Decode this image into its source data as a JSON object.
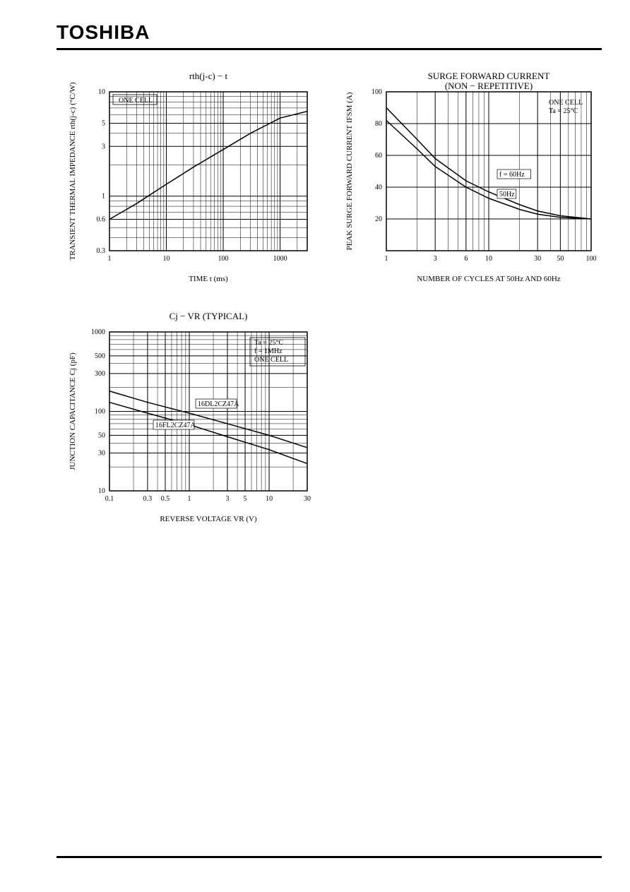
{
  "brand": "TOSHIBA",
  "chart1": {
    "type": "line",
    "title": "rth(j-c)  −  t",
    "ylabel": "TRANSIENT THERMAL IMPEDANCE   rth(j-c)   (°C/W)",
    "xlabel": "TIME   t   (ms)",
    "annotation": "ONE CELL",
    "x_scale": "log",
    "y_scale": "log",
    "xlim": [
      1,
      3000
    ],
    "ylim": [
      0.3,
      10
    ],
    "xticks": [
      1,
      10,
      100,
      1000
    ],
    "xtick_labels": [
      "1",
      "10",
      "100",
      "1000"
    ],
    "yticks": [
      0.3,
      0.6,
      1,
      3,
      5,
      10
    ],
    "ytick_labels": [
      "0.3",
      "0.6",
      "1",
      "3",
      "5",
      "10"
    ],
    "series": [
      {
        "name": "rth",
        "color": "#000000",
        "line_width": 1.5,
        "x": [
          1,
          3,
          10,
          30,
          100,
          300,
          1000,
          3000
        ],
        "y": [
          0.6,
          0.85,
          1.3,
          1.9,
          2.8,
          4.0,
          5.6,
          6.5
        ]
      }
    ],
    "background_color": "#ffffff",
    "grid_color": "#000000",
    "border_width": 1.5,
    "title_fontsize": 13,
    "label_fontsize": 11,
    "tick_fontsize": 10
  },
  "chart2": {
    "type": "line",
    "title1": "SURGE FORWARD CURRENT",
    "title2": "(NON  −  REPETITIVE)",
    "ylabel": "PEAK SURGE FORWARD CURRENT   IFSM   (A)",
    "xlabel": "NUMBER OF CYCLES AT 50Hz AND 60Hz",
    "annotation1": "ONE CELL",
    "annotation2": "Ta = 25°C",
    "curve_label1": "f = 60Hz",
    "curve_label2": "50Hz",
    "x_scale": "log",
    "y_scale": "linear",
    "xlim": [
      1,
      100
    ],
    "ylim": [
      0,
      100
    ],
    "xticks": [
      1,
      3,
      6,
      10,
      30,
      50,
      100
    ],
    "xtick_labels": [
      "1",
      "3",
      "6",
      "10",
      "30",
      "50",
      "100"
    ],
    "yticks": [
      20,
      40,
      60,
      80,
      100
    ],
    "ytick_labels": [
      "20",
      "40",
      "60",
      "80",
      "100"
    ],
    "series": [
      {
        "name": "60Hz",
        "color": "#000000",
        "line_width": 1.5,
        "x": [
          1,
          2,
          3,
          6,
          10,
          20,
          30,
          50,
          100
        ],
        "y": [
          90,
          70,
          58,
          44,
          37,
          29,
          25,
          22,
          20
        ]
      },
      {
        "name": "50Hz",
        "color": "#000000",
        "line_width": 1.5,
        "x": [
          1,
          2,
          3,
          6,
          10,
          20,
          30,
          50,
          100
        ],
        "y": [
          82,
          64,
          53,
          40,
          33,
          26,
          23,
          21,
          20
        ]
      }
    ],
    "background_color": "#ffffff",
    "grid_color": "#000000",
    "border_width": 1.5,
    "title_fontsize": 13,
    "label_fontsize": 11,
    "tick_fontsize": 10
  },
  "chart3": {
    "type": "line",
    "title": "Cj  −  VR        (TYPICAL)",
    "ylabel": "JUNCTION CAPACITANCE   Cj   (pF)",
    "xlabel": "REVERSE VOLTAGE   VR   (V)",
    "annotation1": "Ta = 25°C",
    "annotation2": "f = 1MHz",
    "annotation3": "ONE CELL",
    "curve_label1": "16DL2CZ47A",
    "curve_label2": "16FL2CZ47A",
    "x_scale": "log",
    "y_scale": "log",
    "xlim": [
      0.1,
      30
    ],
    "ylim": [
      10,
      1000
    ],
    "xticks": [
      0.1,
      0.3,
      0.5,
      1,
      3,
      5,
      10,
      30
    ],
    "xtick_labels": [
      "0.1",
      "0.3",
      "0.5",
      "1",
      "3",
      "5",
      "10",
      "30"
    ],
    "yticks": [
      10,
      30,
      50,
      100,
      300,
      500,
      1000
    ],
    "ytick_labels": [
      "10",
      "30",
      "50",
      "100",
      "300",
      "500",
      "1000"
    ],
    "series": [
      {
        "name": "16DL2CZ47A",
        "color": "#000000",
        "line_width": 1.5,
        "x": [
          0.1,
          0.3,
          1,
          3,
          10,
          30
        ],
        "y": [
          180,
          130,
          95,
          70,
          50,
          35
        ]
      },
      {
        "name": "16FL2CZ47A",
        "color": "#000000",
        "line_width": 1.5,
        "x": [
          0.1,
          0.3,
          1,
          3,
          10,
          30
        ],
        "y": [
          130,
          95,
          68,
          48,
          33,
          22
        ]
      }
    ],
    "background_color": "#ffffff",
    "grid_color": "#000000",
    "border_width": 1.5,
    "title_fontsize": 13,
    "label_fontsize": 11,
    "tick_fontsize": 10
  }
}
